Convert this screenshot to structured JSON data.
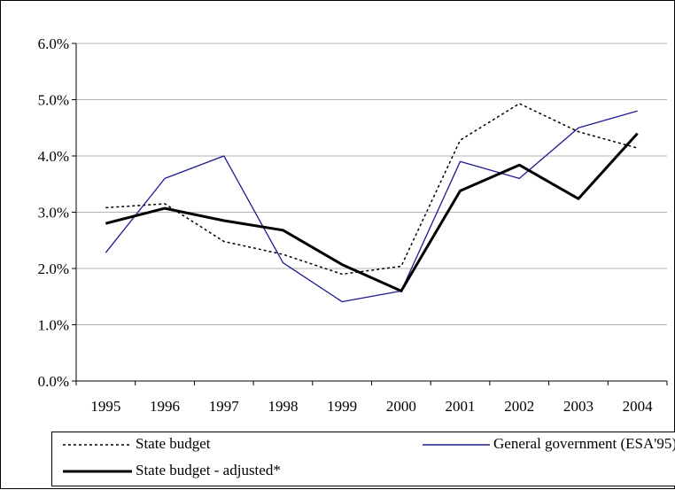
{
  "chart_data": {
    "type": "line",
    "categories": [
      "1995",
      "1996",
      "1997",
      "1998",
      "1999",
      "2000",
      "2001",
      "2002",
      "2003",
      "2004"
    ],
    "y_ticks": [
      "0.0%",
      "1.0%",
      "2.0%",
      "3.0%",
      "4.0%",
      "5.0%",
      "6.0%"
    ],
    "ylim": [
      0,
      6
    ],
    "grid": true,
    "legend_position": "bottom",
    "series": [
      {
        "name": "State budget",
        "values": [
          3.08,
          3.15,
          2.48,
          2.25,
          1.9,
          2.04,
          4.28,
          4.93,
          4.43,
          4.14
        ],
        "color": "#000000",
        "style": "dotted"
      },
      {
        "name": "General government (ESA'95)",
        "values": [
          2.28,
          3.6,
          4.0,
          2.1,
          1.41,
          1.6,
          3.9,
          3.6,
          4.5,
          4.8
        ],
        "color": "#1b1b8f",
        "style": "solid-thin"
      },
      {
        "name": "State budget - adjusted*",
        "values": [
          2.8,
          3.07,
          2.85,
          2.68,
          2.07,
          1.6,
          3.38,
          3.84,
          3.24,
          4.4
        ],
        "color": "#000000",
        "style": "solid-thick"
      }
    ]
  }
}
